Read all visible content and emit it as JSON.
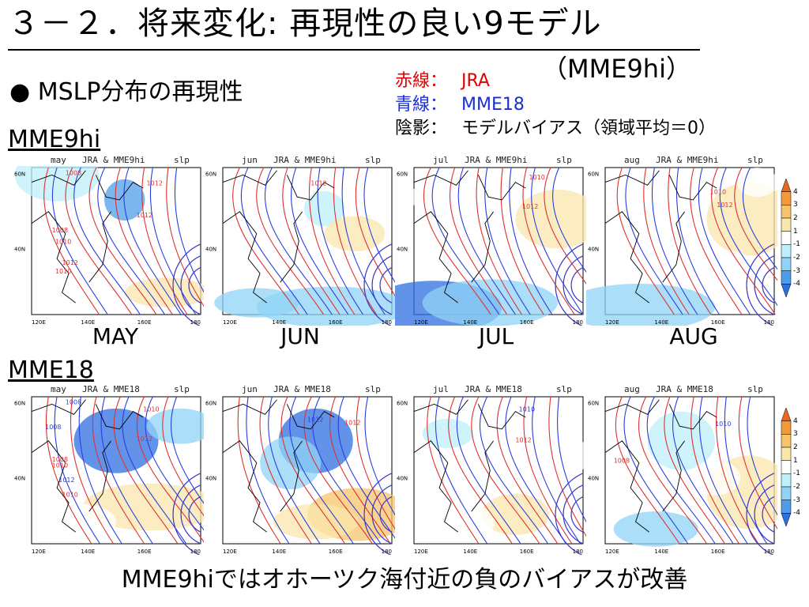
{
  "slide": {
    "title": "３－２．将来変化: 再現性の良い9モデル",
    "subtitle": "（MME9hi）",
    "bullet": "● MSLP分布の再現性",
    "legend": [
      {
        "key": "赤線：",
        "value": "JRA",
        "color": "#e00000"
      },
      {
        "key": "青線：",
        "value": "MME18",
        "color": "#1a2fd6"
      },
      {
        "key": "陰影：",
        "value": "モデルバイアス（領域平均＝0）",
        "color": "#000000"
      }
    ],
    "footer": "MME9hiではオホーツク海付近の負のバイアスが改善"
  },
  "sections": [
    {
      "label": "MME9hi",
      "month_labels": [
        "MAY",
        "JUN",
        "JUL",
        "AUG"
      ],
      "panels": [
        {
          "month": "may",
          "datasets": "JRA & MME9hi",
          "var": "slp",
          "isobars": [
            "1008",
            "1012",
            "1012",
            "1008",
            "1010",
            "1012",
            "1010"
          ]
        },
        {
          "month": "jun",
          "datasets": "JRA & MME9hi",
          "var": "slp",
          "isobars": [
            "1012"
          ]
        },
        {
          "month": "jul",
          "datasets": "JRA & MME9hi",
          "var": "slp",
          "isobars": [
            "1010",
            "1012"
          ]
        },
        {
          "month": "aug",
          "datasets": "JRA & MME9hi",
          "var": "slp",
          "isobars": [
            "1010",
            "1012"
          ]
        }
      ]
    },
    {
      "label": "MME18",
      "panels": [
        {
          "month": "may",
          "datasets": "JRA & MME18",
          "var": "slp",
          "isobars": [
            "1008",
            "1010",
            "1012",
            "1008",
            "1008",
            "1010",
            "1012",
            "1010"
          ]
        },
        {
          "month": "jun",
          "datasets": "JRA & MME18",
          "var": "slp",
          "isobars": [
            "1012",
            "1012"
          ]
        },
        {
          "month": "jul",
          "datasets": "JRA & MME18",
          "var": "slp",
          "isobars": [
            "1010",
            "1012"
          ]
        },
        {
          "month": "aug",
          "datasets": "JRA & MME18",
          "var": "slp",
          "isobars": [
            "1010",
            "1008"
          ]
        }
      ]
    }
  ],
  "map_axes": {
    "x_ticks": [
      "120E",
      "140E",
      "160E",
      "180"
    ],
    "y_ticks": [
      "60N",
      "40N"
    ]
  },
  "colorbar": {
    "levels": [
      "4",
      "3",
      "2",
      "1",
      "-1",
      "-2",
      "-3",
      "-4"
    ],
    "colors": [
      "#e8691e",
      "#f39a3d",
      "#f7c46b",
      "#fae7ac",
      "#ffffff",
      "#bfeffa",
      "#8fd3f6",
      "#4f9de8",
      "#2f6fe0"
    ]
  }
}
